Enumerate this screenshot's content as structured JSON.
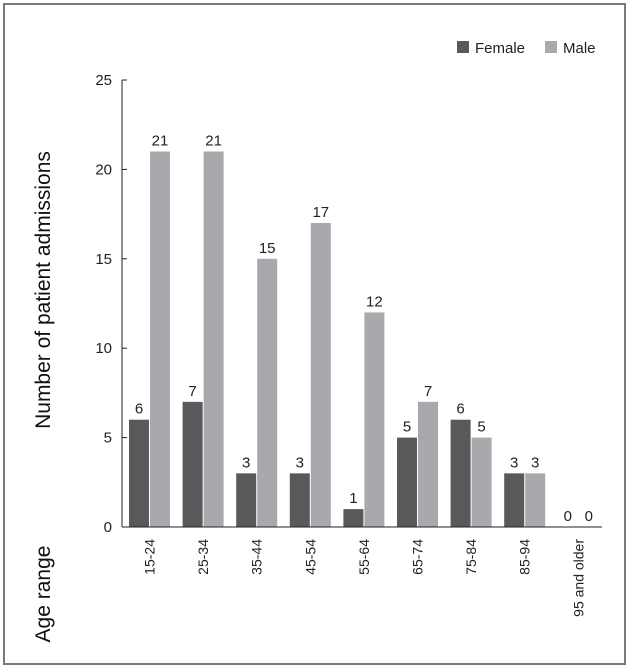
{
  "chart_data": {
    "type": "bar",
    "title": "",
    "xlabel": "Age range",
    "ylabel": "Number of patient admissions",
    "ylim": [
      0,
      25
    ],
    "yticks": [
      0,
      5,
      10,
      15,
      20,
      25
    ],
    "grid": false,
    "legend_position": "top-right",
    "categories": [
      "15-24",
      "25-34",
      "35-44",
      "45-54",
      "55-64",
      "65-74",
      "75-84",
      "85-94",
      "95 and older"
    ],
    "series": [
      {
        "name": "Female",
        "color": "#58595b",
        "values": [
          6,
          7,
          3,
          3,
          1,
          5,
          6,
          3,
          0
        ]
      },
      {
        "name": "Male",
        "color": "#a7a9ac",
        "values": [
          21,
          21,
          15,
          17,
          12,
          7,
          5,
          3,
          0
        ]
      }
    ]
  }
}
